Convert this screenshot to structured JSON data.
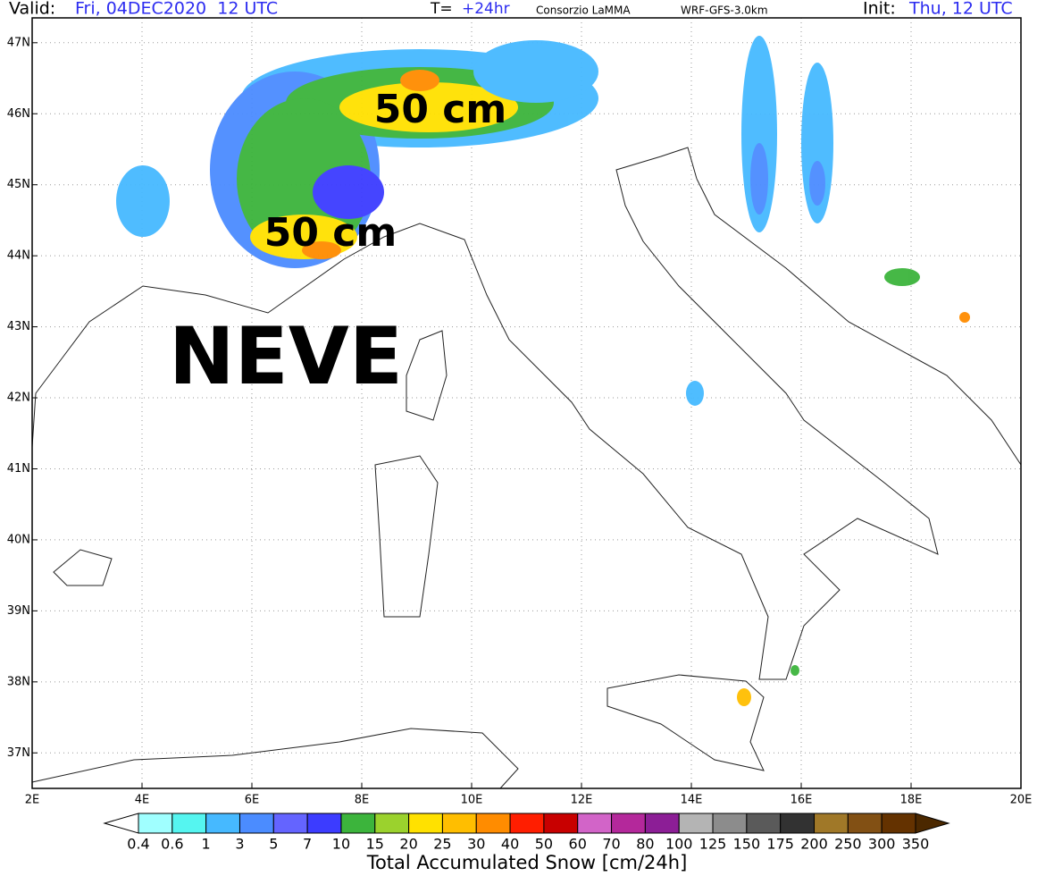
{
  "header": {
    "valid_label": "Valid:",
    "valid_value": "Fri, 04DEC2020  12 UTC",
    "step_label": "T=",
    "step_value": "+24hr",
    "source": "Consorzio LaMMA",
    "model": "WRF-GFS-3.0km",
    "init_label": "Init:",
    "init_value": "Thu, 12 UTC"
  },
  "map": {
    "lon_range": [
      2,
      20
    ],
    "lat_range": [
      36.5,
      47.35
    ],
    "lon_ticks": [
      {
        "value": 2,
        "label": "2E"
      },
      {
        "value": 4,
        "label": "4E"
      },
      {
        "value": 6,
        "label": "6E"
      },
      {
        "value": 8,
        "label": "8E"
      },
      {
        "value": 10,
        "label": "10E"
      },
      {
        "value": 12,
        "label": "12E"
      },
      {
        "value": 14,
        "label": "14E"
      },
      {
        "value": 16,
        "label": "16E"
      },
      {
        "value": 18,
        "label": "18E"
      },
      {
        "value": 20,
        "label": "20E"
      }
    ],
    "lat_ticks": [
      {
        "value": 37,
        "label": "37N"
      },
      {
        "value": 38,
        "label": "38N"
      },
      {
        "value": 39,
        "label": "39N"
      },
      {
        "value": 40,
        "label": "40N"
      },
      {
        "value": 41,
        "label": "41N"
      },
      {
        "value": 42,
        "label": "42N"
      },
      {
        "value": 43,
        "label": "43N"
      },
      {
        "value": 44,
        "label": "44N"
      },
      {
        "value": 45,
        "label": "45N"
      },
      {
        "value": 46,
        "label": "46N"
      },
      {
        "value": 47,
        "label": "47N"
      }
    ],
    "grid": true,
    "annotations": [
      "50 cm",
      "50 cm",
      "NEVE"
    ]
  },
  "colorbar": {
    "labels": [
      0.4,
      0.6,
      1,
      3,
      5,
      7,
      10,
      15,
      20,
      25,
      30,
      40,
      50,
      60,
      70,
      80,
      100,
      125,
      150,
      175,
      200,
      250,
      300,
      350
    ],
    "colors": [
      "#a0ffff",
      "#55f5f0",
      "#46b9ff",
      "#4b8cff",
      "#6464ff",
      "#3c3cff",
      "#3cb43c",
      "#9bd22d",
      "#ffe100",
      "#ffbe00",
      "#ff8c00",
      "#ff1e00",
      "#c80000",
      "#d264c8",
      "#b4289b",
      "#8c1e96",
      "#b4b4b4",
      "#8c8c8c",
      "#5a5a5a",
      "#323232",
      "#a07828",
      "#825014",
      "#643200"
    ],
    "under_color": "#ffffff",
    "over_color": "#4b2800",
    "title": "Total Accumulated Snow [cm/24h]"
  }
}
